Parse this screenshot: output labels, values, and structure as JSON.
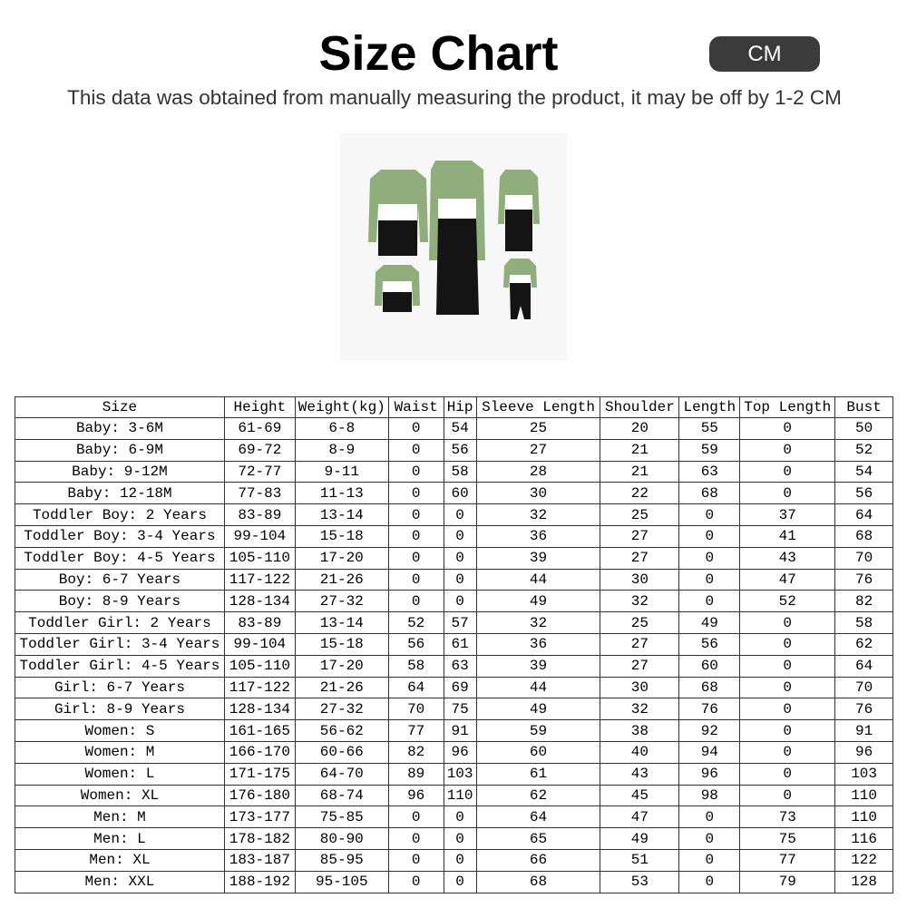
{
  "header": {
    "title": "Size Chart",
    "unit_button": "CM",
    "subtitle": "This data was obtained from manually measuring the product, it may be off by 1-2 CM"
  },
  "product_image": {
    "description_icon": "family-matching-outfits-image",
    "colors": {
      "green": "#8fae7c",
      "white": "#ffffff",
      "black": "#141414"
    }
  },
  "table": {
    "columns": [
      "Size",
      "Height",
      "Weight(kg)",
      "Waist",
      "Hip",
      "Sleeve Length",
      "Shoulder",
      "Length",
      "Top Length",
      "Bust"
    ],
    "rows": [
      [
        "Baby: 3-6M",
        "61-69",
        "6-8",
        "0",
        "54",
        "25",
        "20",
        "55",
        "0",
        "50"
      ],
      [
        "Baby: 6-9M",
        "69-72",
        "8-9",
        "0",
        "56",
        "27",
        "21",
        "59",
        "0",
        "52"
      ],
      [
        "Baby: 9-12M",
        "72-77",
        "9-11",
        "0",
        "58",
        "28",
        "21",
        "63",
        "0",
        "54"
      ],
      [
        "Baby: 12-18M",
        "77-83",
        "11-13",
        "0",
        "60",
        "30",
        "22",
        "68",
        "0",
        "56"
      ],
      [
        "Toddler Boy: 2 Years",
        "83-89",
        "13-14",
        "0",
        "0",
        "32",
        "25",
        "0",
        "37",
        "64"
      ],
      [
        "Toddler Boy: 3-4 Years",
        "99-104",
        "15-18",
        "0",
        "0",
        "36",
        "27",
        "0",
        "41",
        "68"
      ],
      [
        "Toddler Boy: 4-5 Years",
        "105-110",
        "17-20",
        "0",
        "0",
        "39",
        "27",
        "0",
        "43",
        "70"
      ],
      [
        "Boy: 6-7 Years",
        "117-122",
        "21-26",
        "0",
        "0",
        "44",
        "30",
        "0",
        "47",
        "76"
      ],
      [
        "Boy: 8-9 Years",
        "128-134",
        "27-32",
        "0",
        "0",
        "49",
        "32",
        "0",
        "52",
        "82"
      ],
      [
        "Toddler Girl: 2 Years",
        "83-89",
        "13-14",
        "52",
        "57",
        "32",
        "25",
        "49",
        "0",
        "58"
      ],
      [
        "Toddler Girl: 3-4 Years",
        "99-104",
        "15-18",
        "56",
        "61",
        "36",
        "27",
        "56",
        "0",
        "62"
      ],
      [
        "Toddler Girl: 4-5 Years",
        "105-110",
        "17-20",
        "58",
        "63",
        "39",
        "27",
        "60",
        "0",
        "64"
      ],
      [
        "Girl: 6-7 Years",
        "117-122",
        "21-26",
        "64",
        "69",
        "44",
        "30",
        "68",
        "0",
        "70"
      ],
      [
        "Girl: 8-9 Years",
        "128-134",
        "27-32",
        "70",
        "75",
        "49",
        "32",
        "76",
        "0",
        "76"
      ],
      [
        "Women: S",
        "161-165",
        "56-62",
        "77",
        "91",
        "59",
        "38",
        "92",
        "0",
        "91"
      ],
      [
        "Women: M",
        "166-170",
        "60-66",
        "82",
        "96",
        "60",
        "40",
        "94",
        "0",
        "96"
      ],
      [
        "Women: L",
        "171-175",
        "64-70",
        "89",
        "103",
        "61",
        "43",
        "96",
        "0",
        "103"
      ],
      [
        "Women: XL",
        "176-180",
        "68-74",
        "96",
        "110",
        "62",
        "45",
        "98",
        "0",
        "110"
      ],
      [
        "Men: M",
        "173-177",
        "75-85",
        "0",
        "0",
        "64",
        "47",
        "0",
        "73",
        "110"
      ],
      [
        "Men: L",
        "178-182",
        "80-90",
        "0",
        "0",
        "65",
        "49",
        "0",
        "75",
        "116"
      ],
      [
        "Men: XL",
        "183-187",
        "85-95",
        "0",
        "0",
        "66",
        "51",
        "0",
        "77",
        "122"
      ],
      [
        "Men: XXL",
        "188-192",
        "95-105",
        "0",
        "0",
        "68",
        "53",
        "0",
        "79",
        "128"
      ]
    ]
  }
}
